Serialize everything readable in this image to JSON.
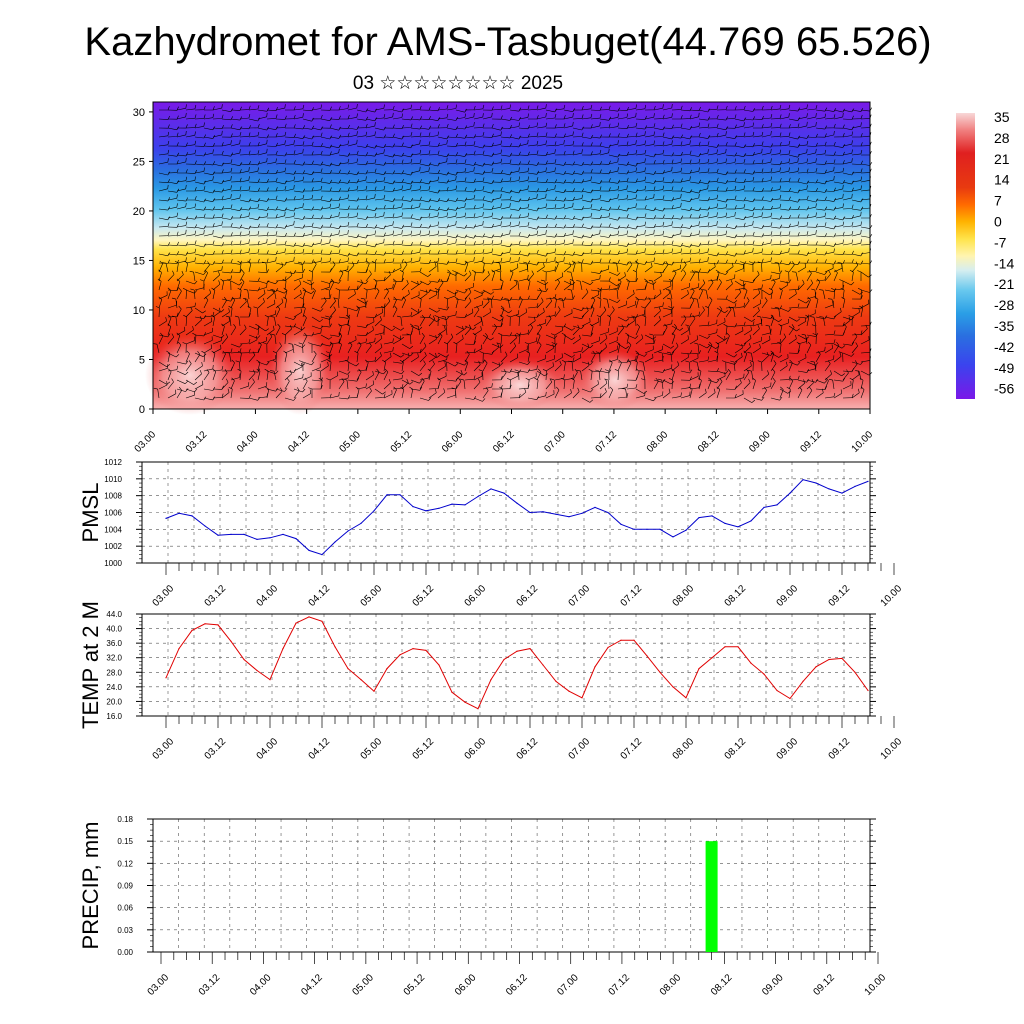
{
  "title": "Kazhydromet for AMS-Tasbuget(44.769 65.526)",
  "subtitle": "03 ☆☆☆☆☆☆☆☆ 2025",
  "colors": {
    "pmsl_line": "#0000cc",
    "temp_line": "#e00000",
    "precip_bar": "#00ff00",
    "wind_barb": "#000000"
  },
  "colorbar": {
    "labels": [
      "35",
      "28",
      "21",
      "14",
      "7",
      "0",
      "-7",
      "-14",
      "-21",
      "-28",
      "-35",
      "-42",
      "-49",
      "-56"
    ],
    "colors": [
      "#f8d0d0",
      "#f08080",
      "#e02020",
      "#e83a10",
      "#ff6a00",
      "#ffb300",
      "#ffe34a",
      "#fff4b0",
      "#d6eef0",
      "#68c8ee",
      "#2a9fe6",
      "#2a6fe0",
      "#3a44ee",
      "#6020ee",
      "#7a18e8"
    ]
  },
  "chart_data": [
    {
      "type": "heatmap",
      "name": "cross-section",
      "x_ticks": [
        "03.00",
        "03.12",
        "04.00",
        "04.12",
        "05.00",
        "05.12",
        "06.00",
        "06.12",
        "07.00",
        "07.12",
        "08.00",
        "08.12",
        "09.00",
        "09.12",
        "10.00"
      ],
      "y_ticks": [
        0,
        5,
        10,
        15,
        20,
        25,
        30
      ],
      "ylim": [
        0,
        31
      ],
      "value_range": [
        -56,
        35
      ]
    },
    {
      "type": "line",
      "ylabel": "PMSL",
      "ylim": [
        1000,
        1012
      ],
      "y_ticks": [
        "1000",
        "1002",
        "1004",
        "1006",
        "1008",
        "1010",
        "1012"
      ],
      "x_ticks": [
        "03.00",
        "03.12",
        "04.00",
        "04.12",
        "05.00",
        "05.12",
        "06.00",
        "06.12",
        "07.00",
        "07.12",
        "08.00",
        "08.12",
        "09.00",
        "09.12",
        "10.00"
      ],
      "grid": true,
      "x": [
        0,
        3,
        6,
        9,
        12,
        15,
        18,
        21,
        24,
        27,
        30,
        33,
        36,
        39,
        42,
        45,
        48,
        51,
        54,
        57,
        60,
        63,
        66,
        69,
        72,
        75,
        78,
        81,
        84,
        87,
        90,
        93,
        96,
        99,
        102,
        105,
        108,
        111,
        114,
        117,
        120,
        123,
        126,
        129,
        132,
        135,
        138,
        141,
        144,
        147,
        150,
        153,
        156,
        159,
        162
      ],
      "values": [
        1005.3,
        1005.9,
        1005.6,
        1004.4,
        1003.3,
        1003.4,
        1003.4,
        1002.8,
        1003.0,
        1003.4,
        1002.9,
        1001.5,
        1001.0,
        1002.5,
        1003.8,
        1004.7,
        1006.2,
        1008.1,
        1008.1,
        1006.7,
        1006.2,
        1006.5,
        1007.0,
        1006.9,
        1007.9,
        1008.8,
        1008.3,
        1007.1,
        1006.0,
        1006.1,
        1005.8,
        1005.5,
        1005.9,
        1006.6,
        1006.0,
        1004.6,
        1004.0,
        1004.0,
        1004.0,
        1003.1,
        1003.9,
        1005.4,
        1005.6,
        1004.7,
        1004.3,
        1005.0,
        1006.6,
        1006.9,
        1008.3,
        1009.9,
        1009.5,
        1008.8,
        1008.3,
        1009.1,
        1009.7
      ]
    },
    {
      "type": "line",
      "ylabel": "TEMP at 2 M",
      "ylim": [
        16,
        44
      ],
      "y_ticks": [
        "16.0",
        "20.0",
        "24.0",
        "28.0",
        "32.0",
        "36.0",
        "40.0",
        "44.0"
      ],
      "x_ticks": [
        "03.00",
        "03.12",
        "04.00",
        "04.12",
        "05.00",
        "05.12",
        "06.00",
        "06.12",
        "07.00",
        "07.12",
        "08.00",
        "08.12",
        "09.00",
        "09.12",
        "10.00"
      ],
      "grid": true,
      "x": [
        0,
        3,
        6,
        9,
        12,
        15,
        18,
        21,
        24,
        27,
        30,
        33,
        36,
        39,
        42,
        45,
        48,
        51,
        54,
        57,
        60,
        63,
        66,
        69,
        72,
        75,
        78,
        81,
        84,
        87,
        90,
        93,
        96,
        99,
        102,
        105,
        108,
        111,
        114,
        117,
        120,
        123,
        126,
        129,
        132,
        135,
        138,
        141,
        144,
        147,
        150,
        153,
        156,
        159,
        162
      ],
      "values": [
        26.5,
        34.5,
        39.5,
        41.3,
        41.0,
        36.5,
        31.5,
        28.5,
        26.0,
        34.5,
        41.5,
        43.2,
        42.0,
        35.0,
        29.0,
        26.0,
        22.8,
        29.0,
        32.8,
        34.5,
        34.0,
        30.0,
        22.5,
        19.8,
        18.0,
        26.0,
        31.5,
        33.8,
        34.5,
        30.0,
        25.5,
        22.8,
        21.0,
        29.5,
        34.8,
        36.8,
        36.8,
        32.5,
        28.0,
        24.0,
        21.0,
        29.0,
        32.0,
        35.0,
        35.0,
        30.5,
        27.5,
        23.0,
        20.8,
        25.5,
        29.5,
        31.5,
        31.8,
        28.0,
        23.0
      ]
    },
    {
      "type": "bar",
      "ylabel": "PRECIP, mm",
      "ylim": [
        0,
        0.18
      ],
      "y_ticks": [
        "0.00",
        "0.03",
        "0.06",
        "0.09",
        "0.12",
        "0.15",
        "0.18"
      ],
      "x_ticks": [
        "03.00",
        "03.12",
        "04.00",
        "04.12",
        "05.00",
        "05.12",
        "06.00",
        "06.12",
        "07.00",
        "07.12",
        "08.00",
        "08.12",
        "09.00",
        "09.12",
        "10.00"
      ],
      "grid": true,
      "bars": [
        {
          "x": 129,
          "value": 0.15
        }
      ]
    }
  ]
}
